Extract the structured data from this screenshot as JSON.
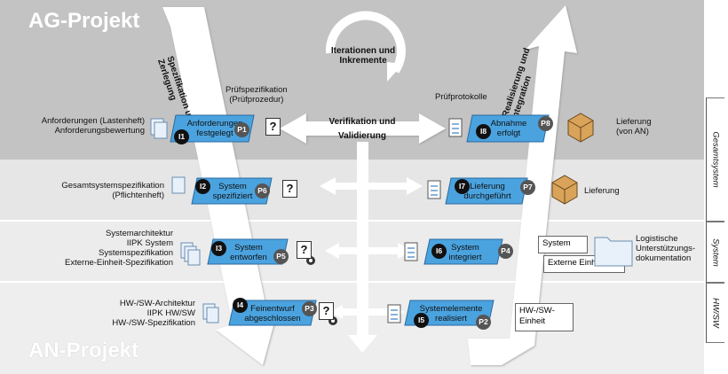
{
  "projects": {
    "ag": "AG-Projekt",
    "an": "AN-Projekt"
  },
  "arrows": {
    "left": "Spezifikation und Zerlegung",
    "right": "Realisierung und Integration",
    "cycle": "Iterationen und Inkremente",
    "center": "Verifikation und Validierung"
  },
  "levels": [
    "Gesamtsystem",
    "System",
    "HW/SW"
  ],
  "headers": {
    "pruefspezifikation": "Prüfspezifikation\n(Prüfprozedur)",
    "pruefprotokolle": "Prüfprotokolle"
  },
  "phases": [
    {
      "i": "I1",
      "label": "Anforderungen\nfestgelegt",
      "p": "P1"
    },
    {
      "i": "I2",
      "label": "System\nspezifiziert",
      "p": "P6"
    },
    {
      "i": "I3",
      "label": "System\nentworfen",
      "p": "P5"
    },
    {
      "i": "I4",
      "label": "Feinentwurf\nabgeschlossen",
      "p": "P3"
    },
    {
      "i": "I5",
      "label": "Systemelemente\nrealisiert",
      "p": "P2"
    },
    {
      "i": "I6",
      "label": "System\nintegriert",
      "p": "P4"
    },
    {
      "i": "I7",
      "label": "Lieferung\ndurchgeführt",
      "p": "P7"
    },
    {
      "i": "I8",
      "label": "Abnahme\nerfolgt",
      "p": "P8"
    }
  ],
  "left_docs": {
    "l1": "Anforderungen (Lastenheft)\nAnforderungsbewertung",
    "l2": "Gesamtsystemspezifikation\n(Pflichtenheft)",
    "l3": "Systemarchitektur\nIIPK System\nSystemspezifikation\nExterne-Einheit-Spezifikation",
    "l4": "HW-/SW-Architektur\nIIPK HW/SW\nHW-/SW-Spezifikation"
  },
  "right_items": {
    "lieferung_an": "Lieferung\n(von AN)",
    "lieferung": "Lieferung",
    "system": "System",
    "externe": "Externe Einheit",
    "logistik": "Logistische\nUnterstützungs-\ndokumentation",
    "hwsw": "HW-/SW-\nEinheit"
  },
  "colors": {
    "ag_band": "#c3c3c3",
    "gesamt_band": "#e6e6e6",
    "system_band": "#f0f0f0",
    "hwsw_band": "#f2f2f2",
    "phase_blue": "#4aa3df",
    "arrow": "#ffffff"
  }
}
